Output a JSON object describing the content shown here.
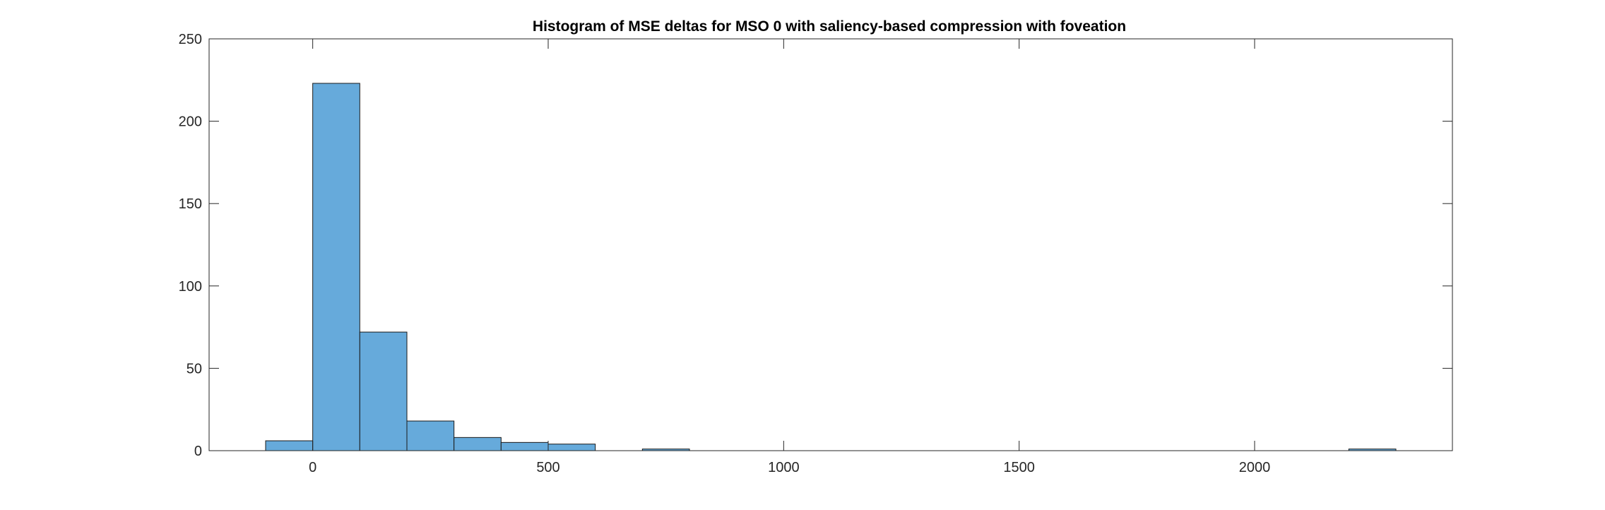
{
  "chart_data": {
    "type": "bar",
    "subtype": "histogram",
    "title": "Histogram of MSE deltas for MSO 0 with saliency-based compression with foveation",
    "xlabel": "",
    "ylabel": "",
    "bin_width": 100,
    "bins": [
      {
        "start": -100,
        "end": 0,
        "count": 6
      },
      {
        "start": 0,
        "end": 100,
        "count": 223
      },
      {
        "start": 100,
        "end": 200,
        "count": 72
      },
      {
        "start": 200,
        "end": 300,
        "count": 18
      },
      {
        "start": 300,
        "end": 400,
        "count": 8
      },
      {
        "start": 400,
        "end": 500,
        "count": 5
      },
      {
        "start": 500,
        "end": 600,
        "count": 4
      },
      {
        "start": 600,
        "end": 700,
        "count": 0
      },
      {
        "start": 700,
        "end": 800,
        "count": 1
      },
      {
        "start": 2200,
        "end": 2300,
        "count": 1
      }
    ],
    "xlim": [
      -220,
      2420
    ],
    "ylim": [
      0,
      250
    ],
    "xticks": [
      0,
      500,
      1000,
      1500,
      2000
    ],
    "yticks": [
      0,
      50,
      100,
      150,
      200,
      250
    ],
    "bar_color": "#66aadb",
    "edge_color": "#1a1a1a",
    "grid": false,
    "legend": "none"
  }
}
